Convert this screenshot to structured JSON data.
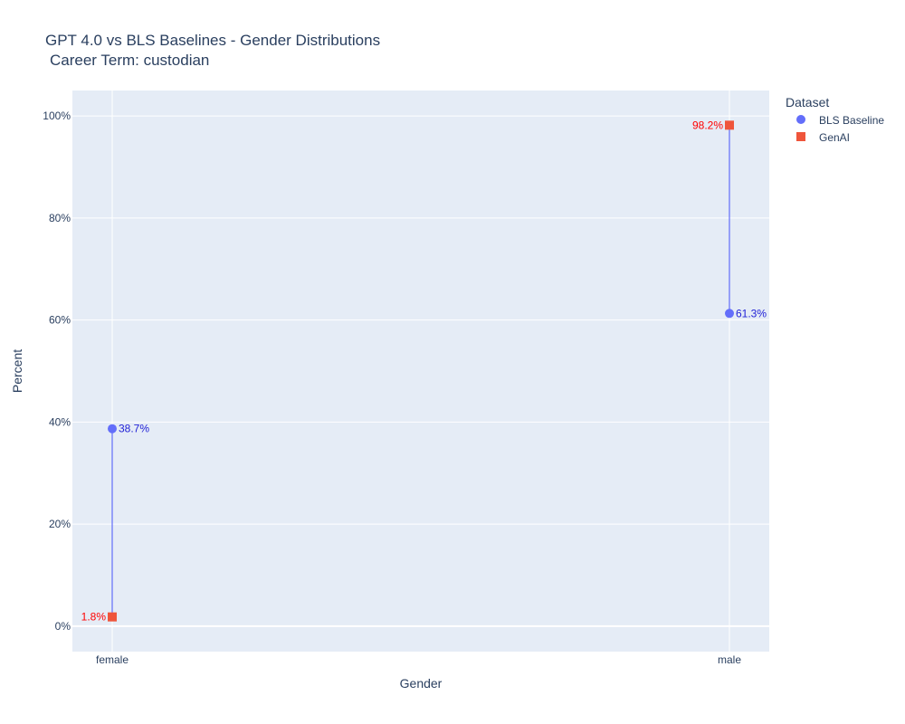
{
  "chart_data": {
    "type": "scatter",
    "title_line1": "GPT 4.0 vs BLS Baselines - Gender Distributions",
    "title_line2": "Career Term: custodian",
    "xlabel": "Gender",
    "ylabel": "Percent",
    "categories": [
      "female",
      "male"
    ],
    "ylim": [
      -0.05,
      1.05
    ],
    "yticks": [
      0,
      0.2,
      0.4,
      0.6,
      0.8,
      1.0
    ],
    "ytick_labels": [
      "0%",
      "20%",
      "40%",
      "60%",
      "80%",
      "100%"
    ],
    "grid": true,
    "legend_title": "Dataset",
    "legend_position": "top-right outside plot",
    "connector_color": "#636efa",
    "series": [
      {
        "name": "BLS Baseline",
        "marker": "circle",
        "color": "#636efa",
        "label_color": "#1f1fd6",
        "label_side": "right",
        "values": [
          0.387,
          0.613
        ],
        "labels": [
          "38.7%",
          "61.3%"
        ]
      },
      {
        "name": "GenAI",
        "marker": "square",
        "color": "#ef553b",
        "label_color": "#ff0000",
        "label_side": "left",
        "values": [
          0.018,
          0.982
        ],
        "labels": [
          "1.8%",
          "98.2%"
        ]
      }
    ]
  }
}
